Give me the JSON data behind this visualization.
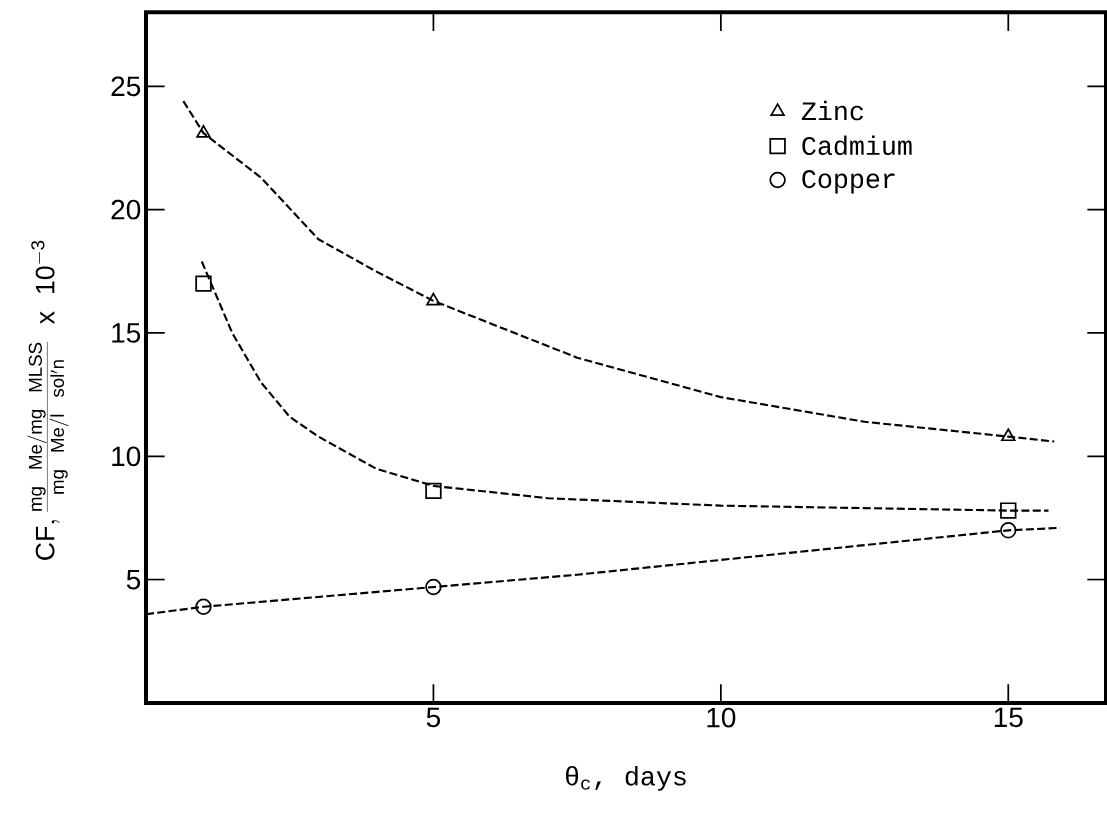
{
  "chart_data": {
    "type": "scatter",
    "xlabel": "θ$_{c}$, days",
    "ylabel": "\\mathrm{CF},\\frac{\\mathrm{mg\\ Me/mg\\ MLSS}}{\\mathrm{mg\\ Me/l\\ sol'n}}\\ \\mathrm{x\\ 10^{-3}}",
    "xlim": [
      0,
      16.7
    ],
    "ylim": [
      0,
      28
    ],
    "xticks": [
      5,
      10,
      15
    ],
    "yticks": [
      5,
      10,
      15,
      20,
      25
    ],
    "grid": false,
    "legend": "top right",
    "series": [
      {
        "name": "Zinc",
        "marker": "triangle",
        "color": "#000000",
        "x": [
          1,
          5,
          15
        ],
        "values": [
          23.1,
          16.3,
          10.8
        ]
      },
      {
        "name": "Cadmium",
        "marker": "square",
        "color": "#000000",
        "x": [
          1,
          5,
          15
        ],
        "values": [
          17.0,
          8.6,
          7.8
        ]
      },
      {
        "name": "Copper",
        "marker": "circle",
        "color": "#000000",
        "x": [
          1,
          5,
          15
        ],
        "values": [
          3.9,
          4.7,
          7.0
        ]
      },
      {
        "type": "line",
        "line_style": "dashed",
        "marker": "none",
        "color": "#000000",
        "x": [
          0.65,
          1,
          2,
          3,
          4,
          5,
          7.5,
          10,
          12.5,
          15,
          15.8
        ],
        "values": [
          24.4,
          23.1,
          21.3,
          18.8,
          17.5,
          16.3,
          14.0,
          12.4,
          11.4,
          10.8,
          10.6
        ]
      },
      {
        "type": "line",
        "line_style": "dashed",
        "marker": "none",
        "color": "#000000",
        "x": [
          0.97,
          1.5,
          2,
          2.5,
          3,
          4,
          5,
          7,
          10,
          12.5,
          15,
          15.7
        ],
        "values": [
          17.9,
          15.0,
          13.0,
          11.6,
          10.8,
          9.5,
          8.8,
          8.3,
          8.0,
          7.9,
          7.8,
          7.8
        ]
      },
      {
        "type": "line",
        "line_style": "dashed",
        "marker": "none",
        "color": "#000000",
        "x": [
          0,
          1,
          2.5,
          5,
          7.5,
          10,
          12.5,
          15,
          15.9
        ],
        "values": [
          3.6,
          3.9,
          4.2,
          4.7,
          5.2,
          5.8,
          6.4,
          7.0,
          7.1
        ]
      }
    ]
  }
}
